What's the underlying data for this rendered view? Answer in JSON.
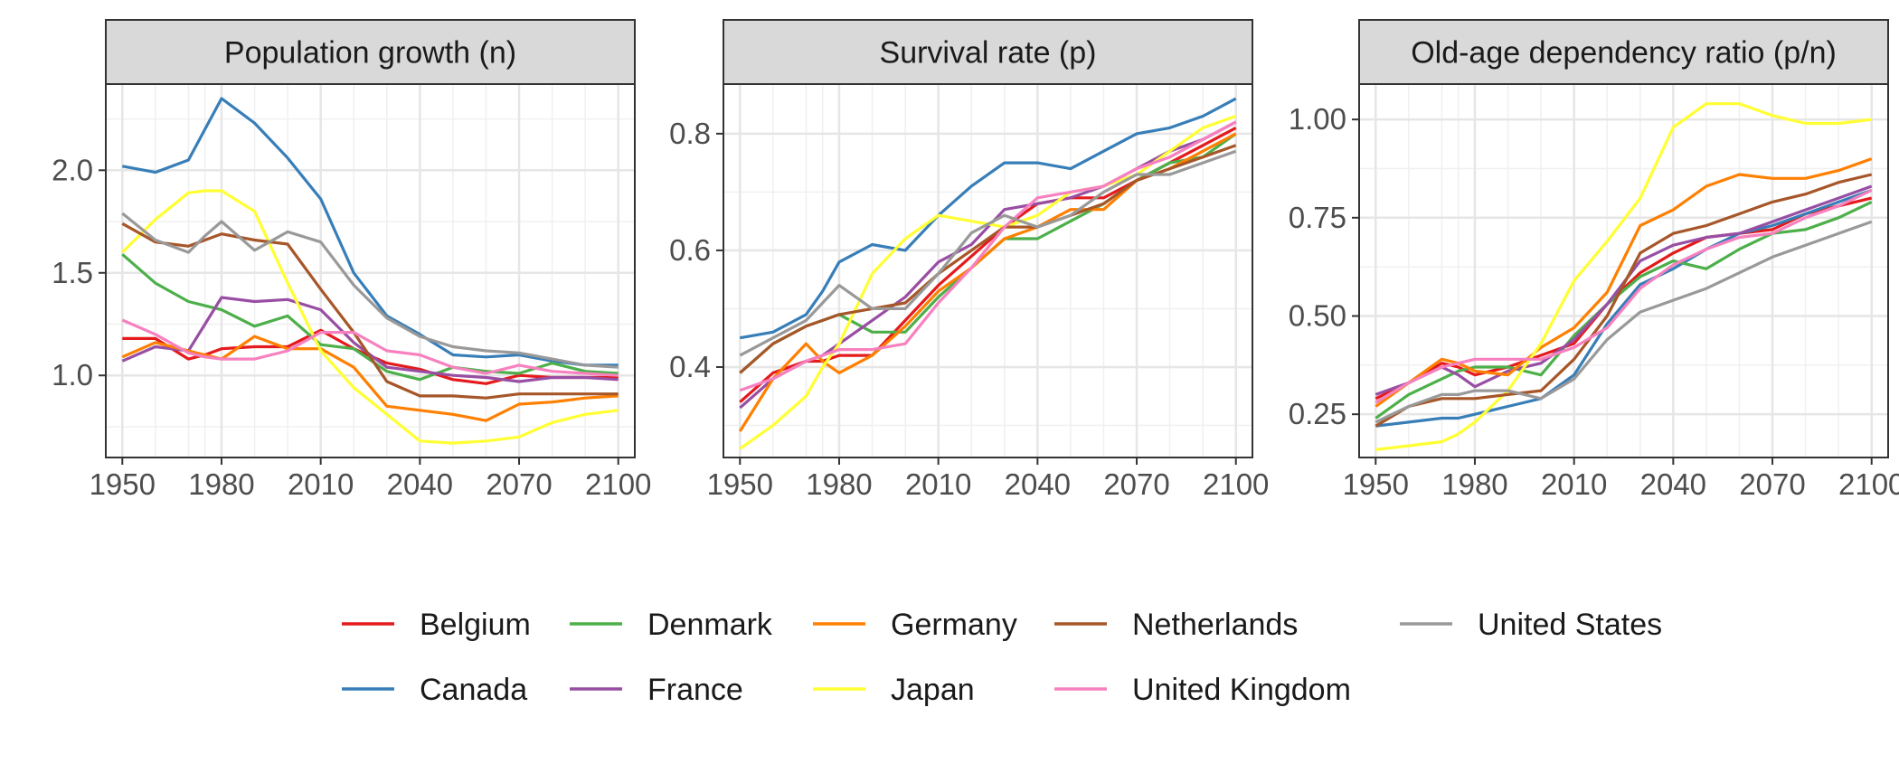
{
  "chart_data": {
    "type": "line",
    "x": [
      1950,
      1960,
      1970,
      1975,
      1980,
      1990,
      2000,
      2010,
      2020,
      2030,
      2040,
      2050,
      2060,
      2070,
      2080,
      2090,
      2100
    ],
    "xticks": [
      "1950",
      "1980",
      "2010",
      "2040",
      "2070",
      "2100"
    ],
    "xlim": [
      1945,
      2105
    ],
    "grid": true,
    "legend_position": "bottom",
    "legend_order": [
      "Belgium",
      "Denmark",
      "Germany",
      "Netherlands",
      "United States",
      "Canada",
      "France",
      "Japan",
      "United Kingdom"
    ],
    "colors": {
      "Belgium": "#e41a1c",
      "Canada": "#377eb8",
      "Denmark": "#4daf4a",
      "France": "#984ea3",
      "Germany": "#ff7f00",
      "Japan": "#ffff33",
      "Netherlands": "#a65628",
      "United Kingdom": "#f781bf",
      "United States": "#999999"
    },
    "panels": [
      {
        "title": "Population growth (n)",
        "ylim": [
          0.6,
          2.42
        ],
        "yticks": [
          "1.0",
          "1.5",
          "2.0"
        ],
        "series": [
          {
            "name": "Belgium",
            "values": [
              1.18,
              1.18,
              1.08,
              1.1,
              1.13,
              1.14,
              1.14,
              1.22,
              1.13,
              1.06,
              1.03,
              0.98,
              0.96,
              1.0,
              0.99,
              0.99,
              0.99
            ]
          },
          {
            "name": "Canada",
            "values": [
              2.02,
              1.99,
              2.05,
              2.2,
              2.35,
              2.23,
              2.06,
              1.86,
              1.5,
              1.29,
              1.2,
              1.1,
              1.09,
              1.1,
              1.07,
              1.05,
              1.05
            ]
          },
          {
            "name": "Denmark",
            "values": [
              1.59,
              1.45,
              1.36,
              1.34,
              1.32,
              1.24,
              1.29,
              1.15,
              1.13,
              1.02,
              0.98,
              1.04,
              1.02,
              1.01,
              1.06,
              1.02,
              1.01
            ]
          },
          {
            "name": "France",
            "values": [
              1.07,
              1.14,
              1.12,
              1.25,
              1.38,
              1.36,
              1.37,
              1.32,
              1.16,
              1.04,
              1.02,
              1.0,
              0.99,
              0.97,
              0.99,
              0.99,
              0.98
            ]
          },
          {
            "name": "Germany",
            "values": [
              1.09,
              1.16,
              1.12,
              1.1,
              1.08,
              1.19,
              1.13,
              1.13,
              1.04,
              0.85,
              0.83,
              0.81,
              0.78,
              0.86,
              0.87,
              0.89,
              0.9
            ]
          },
          {
            "name": "Japan",
            "values": [
              1.6,
              1.76,
              1.89,
              1.9,
              1.9,
              1.8,
              1.45,
              1.12,
              0.94,
              0.81,
              0.68,
              0.67,
              0.68,
              0.7,
              0.77,
              0.81,
              0.83
            ]
          },
          {
            "name": "Netherlands",
            "values": [
              1.74,
              1.65,
              1.63,
              1.66,
              1.69,
              1.66,
              1.64,
              1.42,
              1.21,
              0.97,
              0.9,
              0.9,
              0.89,
              0.91,
              0.91,
              0.91,
              0.91
            ]
          },
          {
            "name": "United Kingdom",
            "values": [
              1.27,
              1.2,
              1.11,
              1.09,
              1.08,
              1.08,
              1.12,
              1.21,
              1.21,
              1.12,
              1.1,
              1.04,
              1.01,
              1.05,
              1.02,
              1.01,
              1.0
            ]
          },
          {
            "name": "United States",
            "values": [
              1.79,
              1.66,
              1.6,
              1.68,
              1.75,
              1.61,
              1.7,
              1.65,
              1.44,
              1.28,
              1.19,
              1.14,
              1.12,
              1.11,
              1.08,
              1.05,
              1.04
            ]
          }
        ]
      },
      {
        "title": "Survival rate (p)",
        "ylim": [
          0.245,
          0.885
        ],
        "yticks": [
          "0.4",
          "0.6",
          "0.8"
        ],
        "series": [
          {
            "name": "Belgium",
            "values": [
              0.34,
              0.39,
              0.41,
              0.41,
              0.42,
              0.42,
              0.48,
              0.54,
              0.59,
              0.64,
              0.68,
              0.69,
              0.69,
              0.72,
              0.75,
              0.78,
              0.81
            ]
          },
          {
            "name": "Canada",
            "values": [
              0.45,
              0.46,
              0.49,
              0.53,
              0.58,
              0.61,
              0.6,
              0.66,
              0.71,
              0.75,
              0.75,
              0.74,
              0.77,
              0.8,
              0.81,
              0.83,
              0.86
            ]
          },
          {
            "name": "Denmark",
            "values": [
              0.39,
              0.44,
              0.47,
              0.48,
              0.49,
              0.46,
              0.46,
              0.52,
              0.57,
              0.62,
              0.62,
              0.65,
              0.68,
              0.72,
              0.75,
              0.76,
              0.8
            ]
          },
          {
            "name": "France",
            "values": [
              0.33,
              0.38,
              0.41,
              0.42,
              0.44,
              0.48,
              0.52,
              0.58,
              0.61,
              0.67,
              0.68,
              0.69,
              0.71,
              0.74,
              0.77,
              0.79,
              0.82
            ]
          },
          {
            "name": "Germany",
            "values": [
              0.29,
              0.38,
              0.44,
              0.41,
              0.39,
              0.42,
              0.47,
              0.53,
              0.57,
              0.62,
              0.64,
              0.67,
              0.67,
              0.72,
              0.74,
              0.77,
              0.8
            ]
          },
          {
            "name": "Japan",
            "values": [
              0.26,
              0.3,
              0.35,
              0.4,
              0.44,
              0.56,
              0.62,
              0.66,
              0.65,
              0.64,
              0.66,
              0.7,
              0.71,
              0.73,
              0.77,
              0.81,
              0.83
            ]
          },
          {
            "name": "Netherlands",
            "values": [
              0.39,
              0.44,
              0.47,
              0.48,
              0.49,
              0.5,
              0.51,
              0.56,
              0.6,
              0.64,
              0.64,
              0.66,
              0.68,
              0.72,
              0.74,
              0.76,
              0.78
            ]
          },
          {
            "name": "United Kingdom",
            "values": [
              0.36,
              0.38,
              0.41,
              0.42,
              0.43,
              0.43,
              0.44,
              0.51,
              0.57,
              0.64,
              0.69,
              0.7,
              0.71,
              0.74,
              0.76,
              0.79,
              0.82
            ]
          },
          {
            "name": "United States",
            "values": [
              0.42,
              0.45,
              0.48,
              0.51,
              0.54,
              0.5,
              0.5,
              0.56,
              0.63,
              0.66,
              0.64,
              0.66,
              0.7,
              0.73,
              0.73,
              0.75,
              0.77
            ]
          }
        ]
      },
      {
        "title": "Old-age dependency ratio (p/n)",
        "ylim": [
          0.14,
          1.09
        ],
        "yticks": [
          "0.25",
          "0.50",
          "0.75",
          "1.00"
        ],
        "series": [
          {
            "name": "Belgium",
            "values": [
              0.29,
              0.33,
              0.38,
              0.37,
              0.35,
              0.37,
              0.4,
              0.43,
              0.53,
              0.61,
              0.66,
              0.7,
              0.71,
              0.72,
              0.76,
              0.78,
              0.8
            ]
          },
          {
            "name": "Canada",
            "values": [
              0.22,
              0.23,
              0.24,
              0.24,
              0.25,
              0.27,
              0.29,
              0.35,
              0.48,
              0.58,
              0.62,
              0.67,
              0.71,
              0.73,
              0.76,
              0.79,
              0.82
            ]
          },
          {
            "name": "Denmark",
            "values": [
              0.24,
              0.3,
              0.34,
              0.36,
              0.37,
              0.37,
              0.35,
              0.45,
              0.53,
              0.6,
              0.64,
              0.62,
              0.67,
              0.71,
              0.72,
              0.75,
              0.79
            ]
          },
          {
            "name": "France",
            "values": [
              0.3,
              0.33,
              0.37,
              0.35,
              0.32,
              0.36,
              0.38,
              0.44,
              0.53,
              0.64,
              0.68,
              0.7,
              0.71,
              0.74,
              0.77,
              0.8,
              0.83
            ]
          },
          {
            "name": "Germany",
            "values": [
              0.27,
              0.33,
              0.39,
              0.38,
              0.36,
              0.35,
              0.42,
              0.47,
              0.56,
              0.73,
              0.77,
              0.83,
              0.86,
              0.85,
              0.85,
              0.87,
              0.9
            ]
          },
          {
            "name": "Japan",
            "values": [
              0.16,
              0.17,
              0.18,
              0.2,
              0.23,
              0.31,
              0.43,
              0.59,
              0.69,
              0.8,
              0.98,
              1.04,
              1.04,
              1.01,
              0.99,
              0.99,
              1.0
            ]
          },
          {
            "name": "Netherlands",
            "values": [
              0.22,
              0.27,
              0.29,
              0.29,
              0.29,
              0.3,
              0.31,
              0.39,
              0.5,
              0.66,
              0.71,
              0.73,
              0.76,
              0.79,
              0.81,
              0.84,
              0.86
            ]
          },
          {
            "name": "United Kingdom",
            "values": [
              0.28,
              0.33,
              0.37,
              0.38,
              0.39,
              0.39,
              0.39,
              0.42,
              0.47,
              0.57,
              0.63,
              0.67,
              0.7,
              0.71,
              0.75,
              0.78,
              0.82
            ]
          },
          {
            "name": "United States",
            "values": [
              0.23,
              0.27,
              0.3,
              0.3,
              0.31,
              0.31,
              0.29,
              0.34,
              0.44,
              0.51,
              0.54,
              0.57,
              0.61,
              0.65,
              0.68,
              0.71,
              0.74
            ]
          }
        ]
      }
    ]
  }
}
